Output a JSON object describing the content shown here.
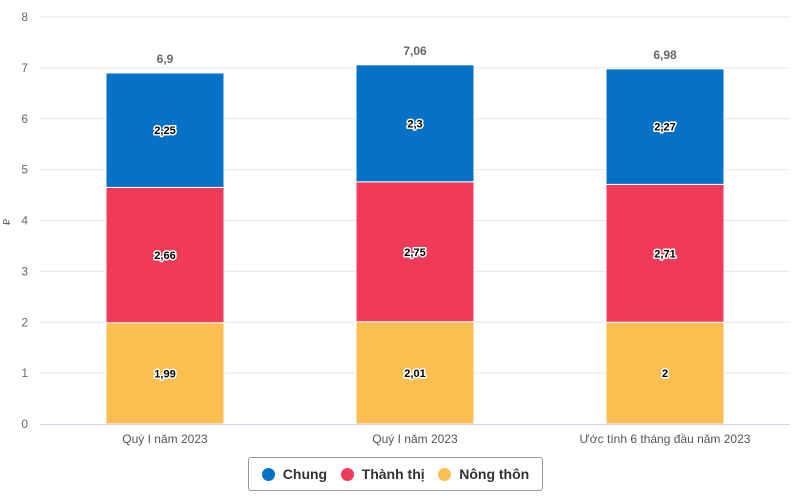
{
  "chart_data": {
    "type": "bar",
    "stacked": true,
    "title": "",
    "xlabel": "",
    "ylabel": "₽",
    "ylim": [
      0,
      8
    ],
    "yticks": [
      "0",
      "1",
      "2",
      "3",
      "4",
      "5",
      "6",
      "7",
      "8"
    ],
    "grid": true,
    "legend_position": "bottom-center",
    "categories": [
      "Quý I năm 2023",
      "Quý I năm 2023",
      "Ước tính 6 tháng đầu năm 2023"
    ],
    "totals": [
      6.9,
      7.06,
      6.98
    ],
    "total_labels": [
      "6,9",
      "7,06",
      "6,98"
    ],
    "series": [
      {
        "name": "Nông thôn",
        "color": "#FDBE51",
        "values": [
          1.99,
          2.01,
          2.0
        ],
        "labels": [
          "1,99",
          "2,01",
          "2"
        ]
      },
      {
        "name": "Thành thị",
        "color": "#EF3A5A",
        "values": [
          2.66,
          2.75,
          2.71
        ],
        "labels": [
          "2,66",
          "2,75",
          "2,71"
        ]
      },
      {
        "name": "Chung",
        "color": "#0572C7",
        "values": [
          2.25,
          2.3,
          2.27
        ],
        "labels": [
          "2,25",
          "2,3",
          "2,27"
        ]
      }
    ],
    "legend": [
      {
        "name": "Chung",
        "color": "#0572C7"
      },
      {
        "name": "Thành thị",
        "color": "#EF3A5A"
      },
      {
        "name": "Nông thôn",
        "color": "#FDBE51"
      }
    ]
  }
}
